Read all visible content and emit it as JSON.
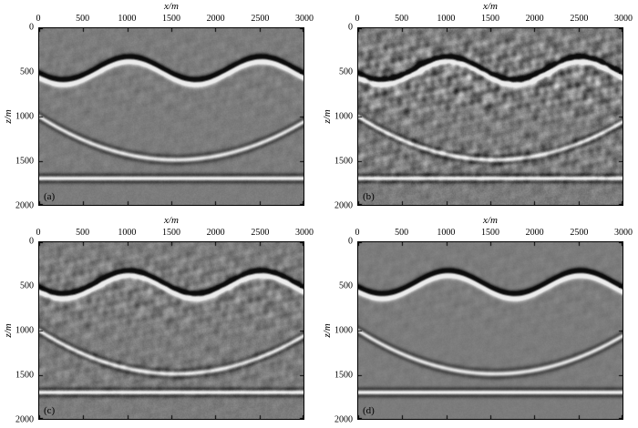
{
  "page": {
    "background": "#ffffff"
  },
  "chart_data": {
    "type": "heatmap",
    "subtype": "grayscale seismic depth-migration images, 2x2 panel figure",
    "axes": {
      "x_label": "x/m",
      "z_label": "z/m",
      "x_ticks": [
        0,
        500,
        1000,
        1500,
        2000,
        2500,
        3000
      ],
      "z_ticks": [
        0,
        500,
        1000,
        1500,
        2000
      ],
      "x_range": [
        0,
        3000
      ],
      "z_range": [
        0,
        2000
      ],
      "grid": false,
      "ticks_inward": true
    },
    "colors": {
      "background_gray": "#7c7c7c",
      "ink": "#000000",
      "bright_event": "#ececec",
      "dark_event": "#0c0c0c"
    },
    "reflectors": [
      {
        "name": "sinusoidal-interface",
        "type": "sine",
        "z0": 480,
        "amplitude": 130,
        "wavelength": 1500,
        "phase_x": 650,
        "wavelet": "gradient",
        "strength": 1.7,
        "sigma_m": 28
      },
      {
        "name": "syncline-interface",
        "type": "syncline",
        "z_edge": 1000,
        "z_center": 1490,
        "x_center": 1550,
        "half_width": 1550,
        "wavelet": "ricker",
        "strength": 0.95,
        "sigma_m": 26
      },
      {
        "name": "flat-interface",
        "type": "flat",
        "z0": 1700,
        "wavelet": "ricker",
        "strength": 1.15,
        "sigma_m": 24
      }
    ],
    "panels": [
      {
        "label": "(a)",
        "artifact_level": 0.1,
        "grain": 0.1
      },
      {
        "label": "(b)",
        "artifact_level": 0.55,
        "grain": 0.18
      },
      {
        "label": "(c)",
        "artifact_level": 0.3,
        "grain": 0.14
      },
      {
        "label": "(d)",
        "artifact_level": 0.07,
        "grain": 0.07
      }
    ]
  }
}
